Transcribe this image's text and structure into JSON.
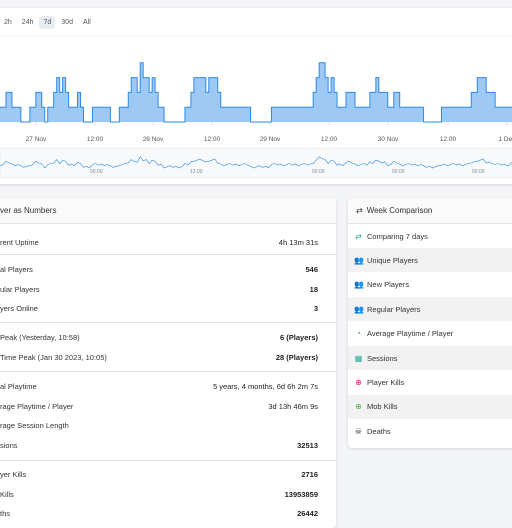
{
  "chart": {
    "range_buttons": [
      "2h",
      "24h",
      "7d",
      "30d",
      "All"
    ],
    "active_range": "7d",
    "x_ticks": [
      "27 Nov",
      "12:00",
      "28 Nov",
      "12:00",
      "29 Nov",
      "12:00",
      "30 Nov",
      "12:00",
      "1 Dec"
    ],
    "navigator_ticks": [
      "00:00",
      "12:00",
      "00:00",
      "00:00",
      "00:00"
    ],
    "color": "#9ec9f5",
    "line_color": "#2d8ae6"
  },
  "chart_data": {
    "type": "area",
    "series": [
      {
        "values": [
          1,
          1,
          2,
          2,
          1,
          1,
          1,
          0,
          0,
          0,
          1,
          1,
          2,
          2,
          1,
          0,
          1,
          1,
          2,
          3,
          2,
          3,
          2,
          1,
          1,
          1,
          2,
          1,
          0,
          0,
          0,
          1,
          1,
          1,
          1,
          1,
          1,
          0,
          0,
          0,
          1,
          1,
          1,
          2,
          3,
          3,
          2,
          4,
          3,
          3,
          2,
          3,
          2,
          1,
          1,
          0,
          0,
          0,
          0,
          0,
          0,
          0,
          1,
          1,
          2,
          3,
          3,
          3,
          3,
          2,
          3,
          3,
          3,
          2,
          1,
          1,
          1,
          1,
          1,
          1,
          1,
          1,
          1,
          1,
          0,
          0,
          0,
          0,
          0,
          0,
          0,
          1,
          1,
          1,
          1,
          1,
          1,
          1,
          1,
          1,
          1,
          1,
          1,
          1,
          1,
          2,
          3,
          4,
          4,
          3,
          2,
          3,
          2,
          1,
          1,
          1,
          2,
          2,
          2,
          1,
          1,
          1,
          1,
          1,
          2,
          2,
          3,
          2,
          2,
          2,
          1,
          1,
          2,
          2,
          1,
          1,
          1,
          1,
          1,
          1,
          1,
          1,
          0,
          0,
          0,
          0,
          0,
          0,
          1,
          1,
          1,
          1,
          1,
          1,
          1,
          1,
          1,
          1,
          2,
          2,
          3,
          3,
          3,
          2,
          2,
          2,
          1,
          1,
          1,
          1,
          1,
          1,
          2,
          2,
          3,
          3
        ]
      }
    ]
  },
  "numbers_panel": {
    "title": "ver as Numbers",
    "rows": [
      {
        "label": "rent Uptime",
        "value": "4h 13m 31s"
      },
      {
        "label": "al Players",
        "value": "546"
      },
      {
        "label": "ular Players",
        "value": "18"
      },
      {
        "label": "yers Online",
        "value": "3"
      },
      {
        "label": "Peak (Yesterday, 10:58)",
        "value": "6 (Players)"
      },
      {
        "label": "Time Peak (Jan 30 2023, 10:05)",
        "value": "28 (Players)"
      },
      {
        "label": "al Playtime",
        "value": "5 years, 4 months, 6d 6h 2m 7s"
      },
      {
        "label": "rage Playtime / Player",
        "value": "3d 13h 46m 9s"
      },
      {
        "label": "rage Session Length",
        "value": ""
      },
      {
        "label": "sions",
        "value": "32513"
      },
      {
        "label": "yer Kills",
        "value": "2716"
      },
      {
        "label": "Kills",
        "value": "13953859"
      },
      {
        "label": "ths",
        "value": "26442"
      }
    ]
  },
  "week_panel": {
    "title": "Week Comparison",
    "rows": [
      {
        "label": "Comparing 7 days",
        "icon": "compare-icon",
        "color": "#26a69a"
      },
      {
        "label": "Unique Players",
        "icon": "users-icon",
        "color": "#2b87d6"
      },
      {
        "label": "New Players",
        "icon": "users-plus-icon",
        "color": "#4caf50"
      },
      {
        "label": "Regular Players",
        "icon": "users-check-icon",
        "color": "#c0ca33"
      },
      {
        "label": "Average Playtime / Player",
        "icon": "clock-icon",
        "color": "#43a047"
      },
      {
        "label": "Sessions",
        "icon": "calendar-icon",
        "color": "#26a69a"
      },
      {
        "label": "Player Kills",
        "icon": "crosshair-icon",
        "color": "#e91e63"
      },
      {
        "label": "Mob Kills",
        "icon": "target-icon",
        "color": "#4caf50"
      },
      {
        "label": "Deaths",
        "icon": "skull-icon",
        "color": "#222222"
      }
    ]
  }
}
